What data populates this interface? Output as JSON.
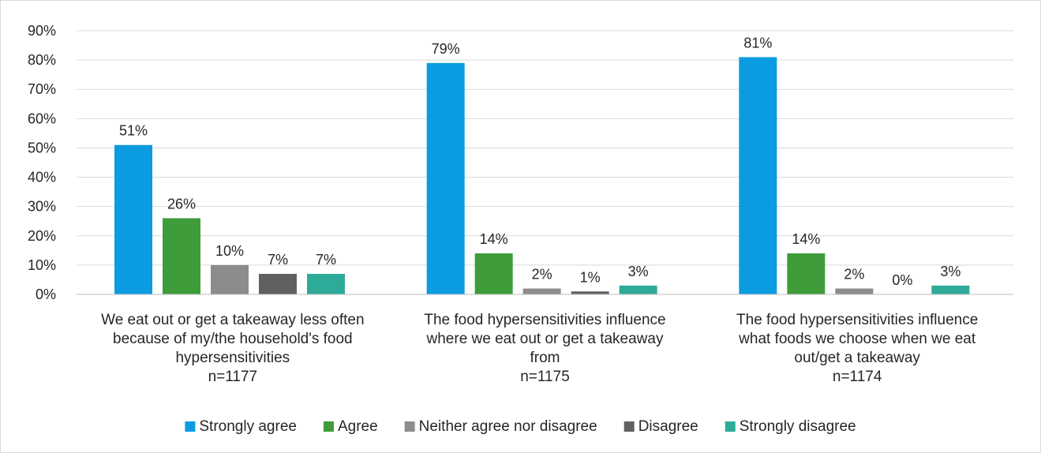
{
  "chart_data": {
    "type": "bar",
    "categories": [
      [
        "We eat out or get a takeaway less often",
        "because of my/the household's food",
        "hypersensitivities",
        "n=1177"
      ],
      [
        "The food hypersensitivities influence",
        "where we eat out or get a takeaway",
        "from",
        "n=1175"
      ],
      [
        "The food hypersensitivities influence",
        "what foods we choose when we eat",
        "out/get a takeaway",
        "n=1174"
      ]
    ],
    "series": [
      {
        "name": "Strongly agree",
        "color": "#0b9be0",
        "values": [
          51,
          79,
          81
        ],
        "labels": [
          "51%",
          "79%",
          "81%"
        ]
      },
      {
        "name": "Agree",
        "color": "#3e9c3a",
        "values": [
          26,
          14,
          14
        ],
        "labels": [
          "26%",
          "14%",
          "14%"
        ]
      },
      {
        "name": "Neither agree nor disagree",
        "color": "#8c8c8c",
        "values": [
          10,
          2,
          2
        ],
        "labels": [
          "10%",
          "2%",
          "2%"
        ]
      },
      {
        "name": "Disagree",
        "color": "#5f6061",
        "values": [
          7,
          1,
          0
        ],
        "labels": [
          "7%",
          "1%",
          "0%"
        ]
      },
      {
        "name": "Strongly disagree",
        "color": "#2eaa98",
        "values": [
          7,
          3,
          3
        ],
        "labels": [
          "7%",
          "3%",
          "3%"
        ]
      }
    ],
    "ylim": [
      0,
      90
    ],
    "yticks": [
      "0%",
      "10%",
      "20%",
      "30%",
      "40%",
      "50%",
      "60%",
      "70%",
      "80%",
      "90%"
    ],
    "grid": true,
    "legend_position": "bottom"
  }
}
